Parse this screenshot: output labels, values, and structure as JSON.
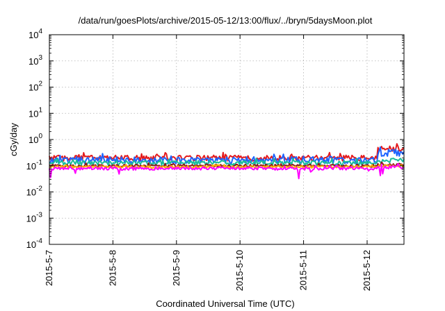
{
  "chart_data": {
    "type": "line",
    "title": "/data/run/goesPlots/archive/2015-05-12/13:00/flux/../bryn/5daysMoon.plot",
    "xlabel": "Coordinated Universal Time (UTC)",
    "ylabel": "cGy/day",
    "yscale": "log",
    "ylim": [
      0.0001,
      10000
    ],
    "x_ticks": [
      "2015-5-7",
      "2015-5-8",
      "2015-5-9",
      "2015-5-10",
      "2015-5-11",
      "2015-5-12"
    ],
    "y_ticks": [
      {
        "base": "10",
        "exp": "-4",
        "value": 0.0001
      },
      {
        "base": "10",
        "exp": "-3",
        "value": 0.001
      },
      {
        "base": "10",
        "exp": "-2",
        "value": 0.01
      },
      {
        "base": "10",
        "exp": "-1",
        "value": 0.1
      },
      {
        "base": "10",
        "exp": "0",
        "value": 1
      },
      {
        "base": "10",
        "exp": "1",
        "value": 10
      },
      {
        "base": "10",
        "exp": "2",
        "value": 100
      },
      {
        "base": "10",
        "exp": "3",
        "value": 1000
      },
      {
        "base": "10",
        "exp": "4",
        "value": 10000
      }
    ],
    "xlim_days": [
      0,
      5.58
    ],
    "grid": true,
    "legend": "none",
    "series": [
      {
        "color": "#e41a1c",
        "base": 0.2,
        "spread": 0.25,
        "late_level": 0.45,
        "dip_depth": 0.0
      },
      {
        "color": "#1e64ff",
        "base": 0.17,
        "spread": 0.3,
        "late_level": 0.33,
        "dip_depth": 0.0
      },
      {
        "color": "#1abc9c",
        "base": 0.13,
        "spread": 0.2,
        "late_level": 0.16,
        "dip_depth": 0.0
      },
      {
        "color": "#8b1a1a",
        "base": 0.1,
        "spread": 0.12,
        "late_level": 0.11,
        "dip_depth": 0.0
      },
      {
        "color": "#ffb000",
        "base": 0.09,
        "spread": 0.1,
        "late_level": 0.1,
        "dip_depth": 0.0
      },
      {
        "color": "#ff00ff",
        "base": 0.08,
        "spread": 0.15,
        "late_level": 0.09,
        "dip_depth": 0.6
      }
    ],
    "late_step_day": 5.17
  }
}
